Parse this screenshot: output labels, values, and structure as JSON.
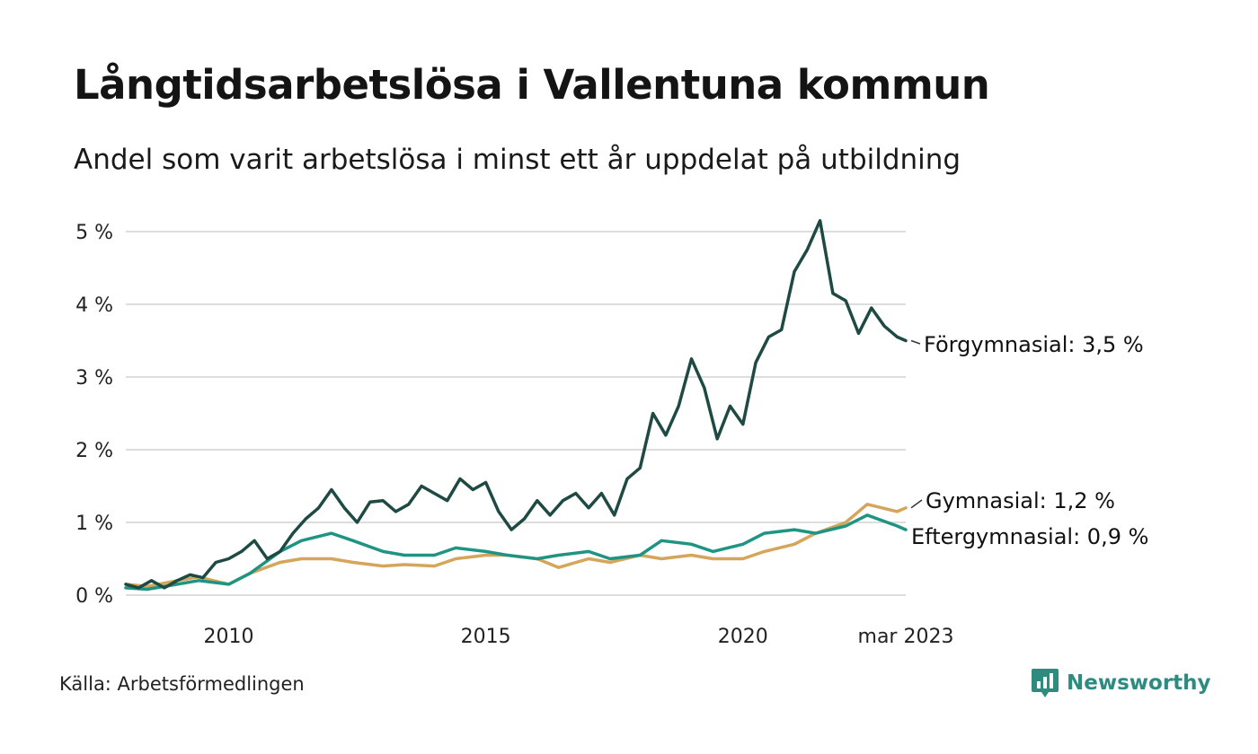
{
  "header": {
    "title": "Långtidsarbetslösa i Vallentuna kommun",
    "subtitle": "Andel som varit arbetslösa i minst ett år uppdelat på utbildning"
  },
  "footer": {
    "source": "Källa: Arbetsförmedlingen",
    "brand": "Newsworthy",
    "brand_icon": "bar-chart-speech-bubble-icon"
  },
  "colors": {
    "forgymnasial": "#1f4a44",
    "gymnasial": "#d4a55a",
    "eftergymnasial": "#1f9482",
    "grid": "#dddddd",
    "brand": "#2e8b7f"
  },
  "chart_data": {
    "type": "line",
    "title": "Långtidsarbetslösa i Vallentuna kommun",
    "subtitle": "Andel som varit arbetslösa i minst ett år uppdelat på utbildning",
    "xlabel": "",
    "ylabel": "",
    "ylim": [
      0,
      5
    ],
    "xlim": [
      "2008-01",
      "2023-03"
    ],
    "grid": true,
    "legend": "direct labels at line ends (right)",
    "y_ticks": [
      {
        "value": 0,
        "label": "0 %"
      },
      {
        "value": 1,
        "label": "1 %"
      },
      {
        "value": 2,
        "label": "2 %"
      },
      {
        "value": 3,
        "label": "3 %"
      },
      {
        "value": 4,
        "label": "4 %"
      },
      {
        "value": 5,
        "label": "5 %"
      }
    ],
    "x_ticks": [
      {
        "value": "2010-01",
        "label": "2010"
      },
      {
        "value": "2015-01",
        "label": "2015"
      },
      {
        "value": "2020-01",
        "label": "2020"
      },
      {
        "value": "2023-03",
        "label": "mar 2023"
      }
    ],
    "series": [
      {
        "name": "Förgymnasial",
        "end_label": "Förgymnasial: 3,5 %",
        "color": "#1f4a44",
        "points": [
          [
            "2008-01",
            0.15
          ],
          [
            "2008-04",
            0.1
          ],
          [
            "2008-07",
            0.2
          ],
          [
            "2008-10",
            0.1
          ],
          [
            "2009-01",
            0.2
          ],
          [
            "2009-04",
            0.28
          ],
          [
            "2009-07",
            0.24
          ],
          [
            "2009-10",
            0.45
          ],
          [
            "2010-01",
            0.5
          ],
          [
            "2010-04",
            0.6
          ],
          [
            "2010-07",
            0.75
          ],
          [
            "2010-10",
            0.5
          ],
          [
            "2011-01",
            0.6
          ],
          [
            "2011-04",
            0.85
          ],
          [
            "2011-07",
            1.05
          ],
          [
            "2011-10",
            1.2
          ],
          [
            "2012-01",
            1.45
          ],
          [
            "2012-04",
            1.2
          ],
          [
            "2012-07",
            1.0
          ],
          [
            "2012-10",
            1.28
          ],
          [
            "2013-01",
            1.3
          ],
          [
            "2013-04",
            1.15
          ],
          [
            "2013-07",
            1.25
          ],
          [
            "2013-10",
            1.5
          ],
          [
            "2014-01",
            1.4
          ],
          [
            "2014-04",
            1.3
          ],
          [
            "2014-07",
            1.6
          ],
          [
            "2014-10",
            1.45
          ],
          [
            "2015-01",
            1.55
          ],
          [
            "2015-04",
            1.15
          ],
          [
            "2015-07",
            0.9
          ],
          [
            "2015-10",
            1.05
          ],
          [
            "2016-01",
            1.3
          ],
          [
            "2016-04",
            1.1
          ],
          [
            "2016-07",
            1.3
          ],
          [
            "2016-10",
            1.4
          ],
          [
            "2017-01",
            1.2
          ],
          [
            "2017-04",
            1.4
          ],
          [
            "2017-07",
            1.1
          ],
          [
            "2017-10",
            1.6
          ],
          [
            "2018-01",
            1.75
          ],
          [
            "2018-04",
            2.5
          ],
          [
            "2018-07",
            2.2
          ],
          [
            "2018-10",
            2.6
          ],
          [
            "2019-01",
            3.25
          ],
          [
            "2019-04",
            2.85
          ],
          [
            "2019-07",
            2.15
          ],
          [
            "2019-10",
            2.6
          ],
          [
            "2020-01",
            2.35
          ],
          [
            "2020-04",
            3.2
          ],
          [
            "2020-07",
            3.55
          ],
          [
            "2020-10",
            3.65
          ],
          [
            "2021-01",
            4.45
          ],
          [
            "2021-04",
            4.75
          ],
          [
            "2021-07",
            5.15
          ],
          [
            "2021-10",
            4.15
          ],
          [
            "2022-01",
            4.05
          ],
          [
            "2022-04",
            3.6
          ],
          [
            "2022-07",
            3.95
          ],
          [
            "2022-10",
            3.7
          ],
          [
            "2023-01",
            3.55
          ],
          [
            "2023-03",
            3.5
          ]
        ]
      },
      {
        "name": "Gymnasial",
        "end_label": "Gymnasial: 1,2 %",
        "color": "#d4a55a",
        "points": [
          [
            "2008-01",
            0.15
          ],
          [
            "2008-06",
            0.12
          ],
          [
            "2009-01",
            0.2
          ],
          [
            "2009-06",
            0.25
          ],
          [
            "2010-01",
            0.15
          ],
          [
            "2010-06",
            0.3
          ],
          [
            "2011-01",
            0.45
          ],
          [
            "2011-06",
            0.5
          ],
          [
            "2012-01",
            0.5
          ],
          [
            "2012-06",
            0.45
          ],
          [
            "2013-01",
            0.4
          ],
          [
            "2013-06",
            0.42
          ],
          [
            "2014-01",
            0.4
          ],
          [
            "2014-06",
            0.5
          ],
          [
            "2015-01",
            0.55
          ],
          [
            "2015-06",
            0.55
          ],
          [
            "2016-01",
            0.5
          ],
          [
            "2016-06",
            0.38
          ],
          [
            "2017-01",
            0.5
          ],
          [
            "2017-06",
            0.45
          ],
          [
            "2018-01",
            0.55
          ],
          [
            "2018-06",
            0.5
          ],
          [
            "2019-01",
            0.55
          ],
          [
            "2019-06",
            0.5
          ],
          [
            "2020-01",
            0.5
          ],
          [
            "2020-06",
            0.6
          ],
          [
            "2021-01",
            0.7
          ],
          [
            "2021-06",
            0.85
          ],
          [
            "2022-01",
            1.0
          ],
          [
            "2022-06",
            1.25
          ],
          [
            "2023-01",
            1.15
          ],
          [
            "2023-03",
            1.2
          ]
        ]
      },
      {
        "name": "Eftergymnasial",
        "end_label": "Eftergymnasial: 0,9 %",
        "color": "#1f9482",
        "points": [
          [
            "2008-01",
            0.1
          ],
          [
            "2008-06",
            0.08
          ],
          [
            "2009-01",
            0.15
          ],
          [
            "2009-06",
            0.2
          ],
          [
            "2010-01",
            0.15
          ],
          [
            "2010-06",
            0.3
          ],
          [
            "2011-01",
            0.6
          ],
          [
            "2011-06",
            0.75
          ],
          [
            "2012-01",
            0.85
          ],
          [
            "2012-06",
            0.75
          ],
          [
            "2013-01",
            0.6
          ],
          [
            "2013-06",
            0.55
          ],
          [
            "2014-01",
            0.55
          ],
          [
            "2014-06",
            0.65
          ],
          [
            "2015-01",
            0.6
          ],
          [
            "2015-06",
            0.55
          ],
          [
            "2016-01",
            0.5
          ],
          [
            "2016-06",
            0.55
          ],
          [
            "2017-01",
            0.6
          ],
          [
            "2017-06",
            0.5
          ],
          [
            "2018-01",
            0.55
          ],
          [
            "2018-06",
            0.75
          ],
          [
            "2019-01",
            0.7
          ],
          [
            "2019-06",
            0.6
          ],
          [
            "2020-01",
            0.7
          ],
          [
            "2020-06",
            0.85
          ],
          [
            "2021-01",
            0.9
          ],
          [
            "2021-06",
            0.85
          ],
          [
            "2022-01",
            0.95
          ],
          [
            "2022-06",
            1.1
          ],
          [
            "2023-01",
            0.95
          ],
          [
            "2023-03",
            0.9
          ]
        ]
      }
    ]
  }
}
